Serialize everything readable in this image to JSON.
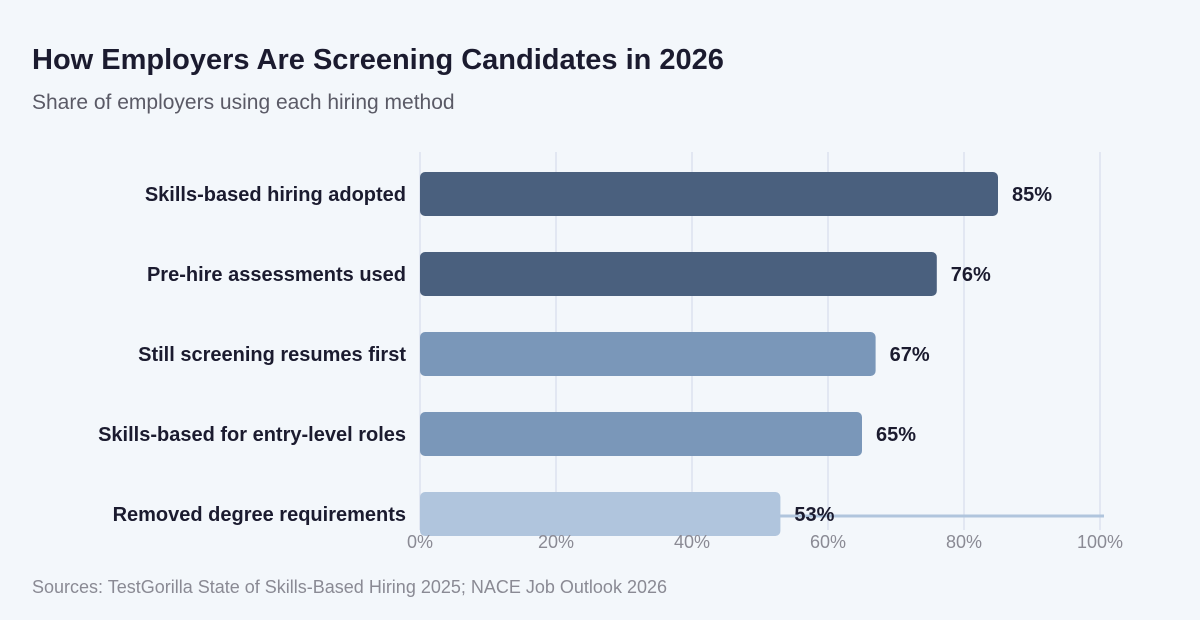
{
  "title": "How Employers Are Screening Candidates in 2026",
  "subtitle": "Share of employers using each hiring method",
  "source": "Sources: TestGorilla State of Skills-Based Hiring 2025; NACE Job Outlook 2026",
  "chart_data": {
    "type": "bar",
    "orientation": "horizontal",
    "title": "How Employers Are Screening Candidates in 2026",
    "subtitle": "Share of employers using each hiring method",
    "categories": [
      "Skills-based hiring adopted",
      "Pre-hire assessments used",
      "Still screening resumes first",
      "Skills-based for entry-level roles",
      "Removed degree requirements"
    ],
    "values": [
      85,
      76,
      67,
      65,
      53
    ],
    "value_labels": [
      "85%",
      "76%",
      "67%",
      "65%",
      "53%"
    ],
    "bar_colors": [
      "#4a607e",
      "#4a607e",
      "#7a97b9",
      "#7a97b9",
      "#b0c5dd"
    ],
    "xlim": [
      0,
      100
    ],
    "x_ticks": [
      0,
      20,
      40,
      60,
      80,
      100
    ],
    "x_tick_labels": [
      "0%",
      "20%",
      "40%",
      "60%",
      "80%",
      "100%"
    ],
    "xlabel": "",
    "ylabel": "",
    "grid": true,
    "legend": "none",
    "colors": {
      "grid": "#dde2ef",
      "axis": "#b0c5dd"
    }
  }
}
